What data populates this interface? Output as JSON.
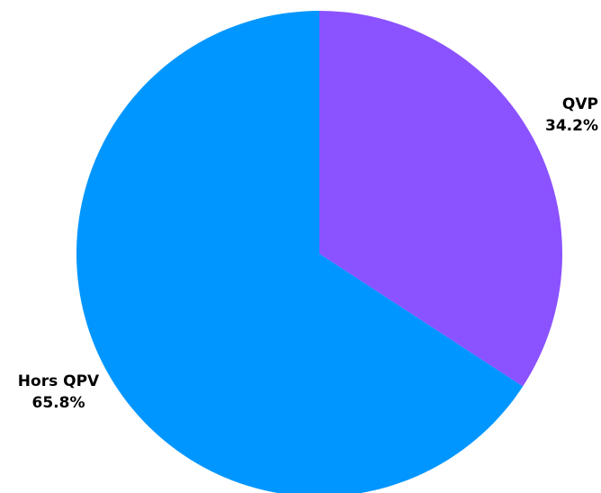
{
  "chart_data": {
    "type": "pie",
    "title": "",
    "slices": [
      {
        "label": "QVP",
        "value": 34.2,
        "display": "34.2%",
        "color": "#8b52ff"
      },
      {
        "label": "Hors QPV",
        "value": 65.8,
        "display": "65.8%",
        "color": "#0096ff"
      }
    ],
    "start_angle_deg": 0,
    "direction": "clockwise",
    "legend": "none"
  }
}
